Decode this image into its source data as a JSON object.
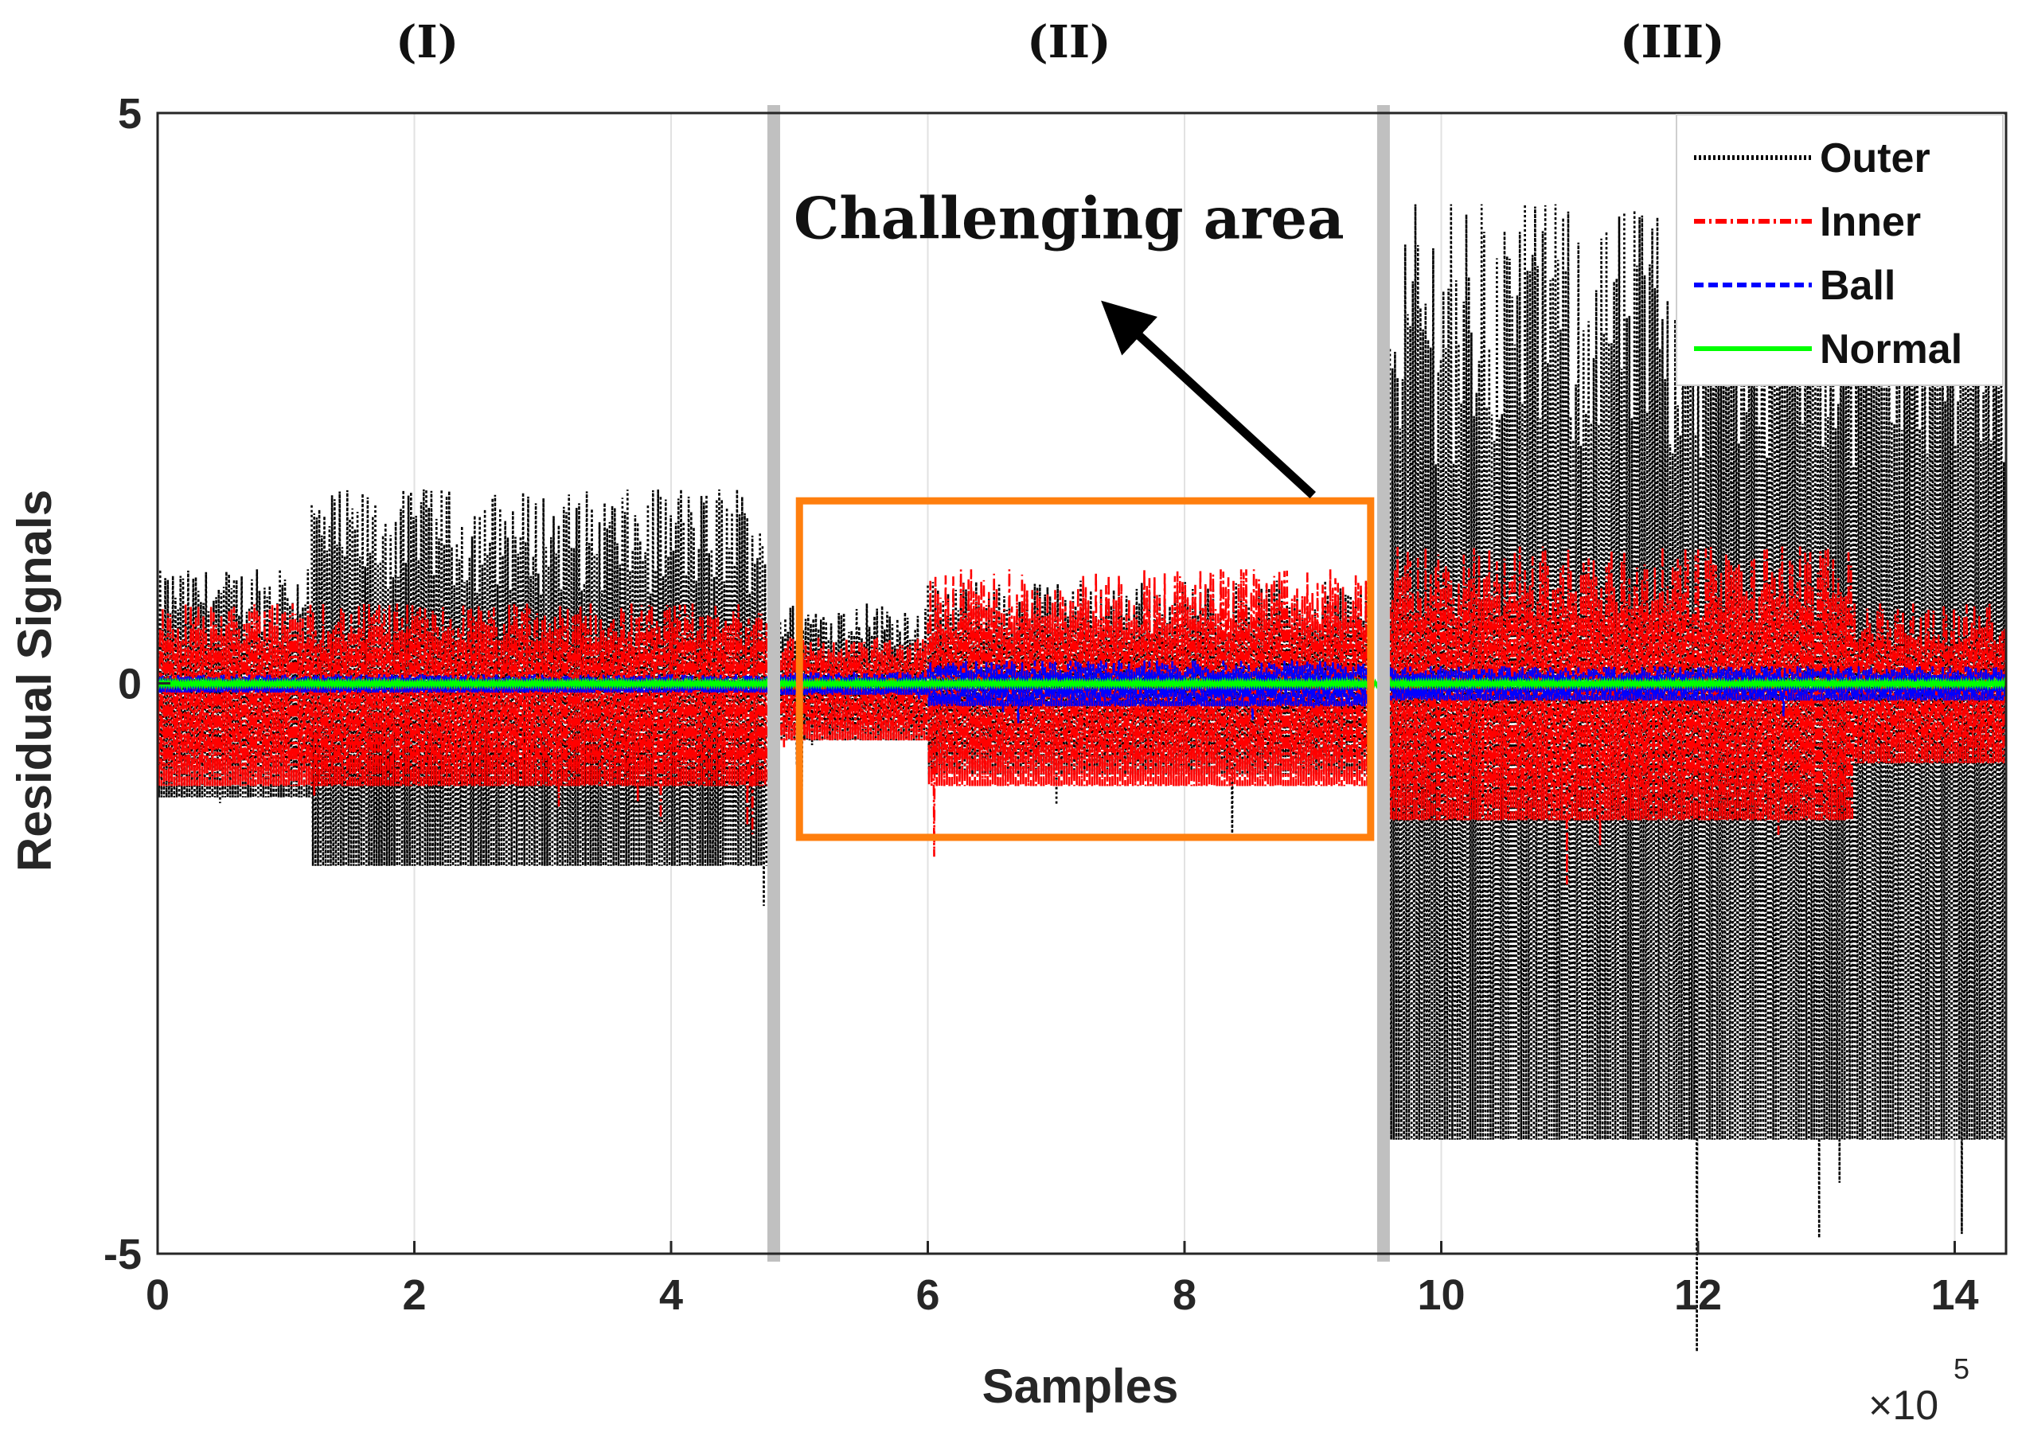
{
  "chart_data": {
    "type": "line",
    "title": "",
    "xlabel": "Samples",
    "ylabel": "Residual Signals",
    "x_multiplier_label": "×10",
    "x_multiplier_exponent": "5",
    "xlim": [
      0,
      14.4
    ],
    "ylim": [
      -5,
      5
    ],
    "x_ticks": [
      0,
      2,
      4,
      6,
      8,
      10,
      12,
      14
    ],
    "x_tick_labels": [
      "0",
      "2",
      "4",
      "6",
      "8",
      "10",
      "12",
      "14"
    ],
    "y_ticks": [
      -5,
      0,
      5
    ],
    "y_tick_labels": [
      "-5",
      "0",
      "5"
    ],
    "grid": "vertical",
    "legend_position": "top-right",
    "series": [
      {
        "name": "Outer",
        "color": "#000000",
        "style": "dotted",
        "segments": [
          {
            "x": [
              0.0,
              1.2
            ],
            "pos": 1.0,
            "neg": 1.0
          },
          {
            "x": [
              1.2,
              4.75
            ],
            "pos": 1.7,
            "neg": 1.6
          },
          {
            "x": [
              4.85,
              6.0
            ],
            "pos": 0.7,
            "neg": 0.5
          },
          {
            "x": [
              6.0,
              9.45
            ],
            "pos": 0.9,
            "neg": 0.8
          },
          {
            "x": [
              9.6,
              14.4
            ],
            "pos": 4.2,
            "neg": 4.0
          }
        ]
      },
      {
        "name": "Inner",
        "color": "#ff0000",
        "style": "dash-dot",
        "segments": [
          {
            "x": [
              0.0,
              4.75
            ],
            "pos": 0.7,
            "neg": 0.9
          },
          {
            "x": [
              4.85,
              6.0
            ],
            "pos": 0.4,
            "neg": 0.5
          },
          {
            "x": [
              6.0,
              9.45
            ],
            "pos": 1.0,
            "neg": 0.9
          },
          {
            "x": [
              9.6,
              13.2
            ],
            "pos": 1.2,
            "neg": 1.2
          },
          {
            "x": [
              13.2,
              14.4
            ],
            "pos": 0.7,
            "neg": 0.7
          }
        ]
      },
      {
        "name": "Ball",
        "color": "#0000ff",
        "style": "dashed",
        "segments": [
          {
            "x": [
              0.0,
              4.75
            ],
            "pos": 0.08,
            "neg": 0.08
          },
          {
            "x": [
              4.85,
              6.0
            ],
            "pos": 0.1,
            "neg": 0.1
          },
          {
            "x": [
              6.0,
              9.45
            ],
            "pos": 0.2,
            "neg": 0.2
          },
          {
            "x": [
              9.6,
              14.4
            ],
            "pos": 0.15,
            "neg": 0.15
          }
        ]
      },
      {
        "name": "Normal",
        "color": "#00ff00",
        "style": "solid",
        "segments": [
          {
            "x": [
              0.0,
              14.4
            ],
            "pos": 0.02,
            "neg": 0.02
          }
        ]
      }
    ],
    "region_dividers_x": [
      4.8,
      9.55
    ],
    "regions": [
      {
        "label": "(I)",
        "x": 2.1
      },
      {
        "label": "(II)",
        "x": 7.1
      },
      {
        "label": "(III)",
        "x": 11.8
      }
    ],
    "annotation": {
      "text": "Challenging area",
      "box": {
        "x": [
          5.0,
          9.45
        ],
        "y": [
          -1.35,
          1.6
        ]
      },
      "text_at": {
        "x": 7.1,
        "y": 3.9
      },
      "arrow_from": {
        "x": 9.0,
        "y": 1.65
      },
      "arrow_to": {
        "x": 7.5,
        "y": 3.2
      }
    }
  }
}
